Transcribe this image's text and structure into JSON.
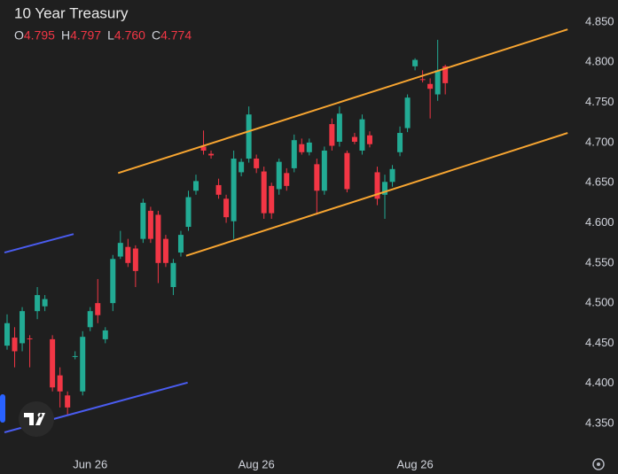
{
  "chart_data": {
    "type": "candlestick",
    "title": "10 Year Treasury",
    "ohlc_header": [
      {
        "key": "O",
        "value": 4.795,
        "label": "4.795"
      },
      {
        "key": "H",
        "value": 4.797,
        "label": "4.797"
      },
      {
        "key": "L",
        "value": 4.76,
        "label": "4.760"
      },
      {
        "key": "C",
        "value": 4.774,
        "label": "4.774"
      }
    ],
    "categories": [
      null,
      null,
      null,
      null,
      null,
      null,
      null,
      null,
      null,
      null,
      null,
      "Jun 26",
      null,
      null,
      null,
      null,
      null,
      null,
      null,
      null,
      null,
      null,
      null,
      null,
      null,
      null,
      null,
      null,
      null,
      null,
      null,
      null,
      null,
      "Aug 26",
      null,
      null,
      null,
      null,
      null,
      null,
      null,
      null,
      null,
      null,
      null,
      null,
      null,
      null,
      null,
      null,
      null,
      null,
      null,
      null,
      "Aug 26",
      null,
      null,
      null,
      null
    ],
    "open": [
      4.447,
      4.457,
      4.45,
      4.456,
      4.49,
      4.496,
      4.455,
      4.41,
      4.385,
      4.433,
      4.39,
      4.47,
      4.5,
      4.455,
      4.5,
      4.558,
      4.57,
      4.568,
      4.58,
      4.615,
      4.61,
      4.58,
      4.52,
      4.563,
      4.595,
      4.64,
      4.695,
      4.686,
      4.647,
      4.63,
      4.602,
      4.663,
      4.68,
      4.68,
      4.664,
      4.646,
      4.642,
      4.662,
      4.668,
      4.698,
      4.688,
      4.673,
      4.64,
      4.723,
      4.701,
      4.687,
      4.707,
      4.69,
      4.709,
      4.663,
      4.635,
      4.651,
      4.688,
      4.718,
      4.795,
      4.779,
      4.773,
      4.76,
      4.795
    ],
    "high": [
      4.486,
      4.47,
      4.495,
      4.46,
      4.52,
      4.51,
      4.46,
      4.42,
      4.39,
      4.44,
      4.465,
      4.495,
      4.53,
      4.47,
      4.56,
      4.59,
      4.58,
      4.572,
      4.63,
      4.62,
      4.615,
      4.585,
      4.555,
      4.59,
      4.64,
      4.66,
      4.715,
      4.69,
      4.655,
      4.635,
      4.69,
      4.68,
      4.745,
      4.685,
      4.67,
      4.65,
      4.68,
      4.668,
      4.71,
      4.705,
      4.705,
      4.68,
      4.695,
      4.73,
      4.745,
      4.69,
      4.712,
      4.735,
      4.714,
      4.67,
      4.66,
      4.672,
      4.72,
      4.76,
      4.805,
      4.79,
      4.78,
      4.828,
      4.797
    ],
    "low": [
      4.442,
      4.42,
      4.44,
      4.42,
      4.48,
      4.49,
      4.39,
      4.37,
      4.36,
      4.43,
      4.385,
      4.465,
      4.475,
      4.45,
      4.49,
      4.555,
      4.545,
      4.52,
      4.575,
      4.575,
      4.525,
      4.545,
      4.51,
      4.558,
      4.59,
      4.635,
      4.685,
      4.68,
      4.63,
      4.6,
      4.58,
      4.658,
      4.675,
      4.662,
      4.605,
      4.605,
      4.635,
      4.64,
      4.663,
      4.685,
      4.684,
      4.61,
      4.635,
      4.69,
      4.695,
      4.638,
      4.698,
      4.685,
      4.694,
      4.622,
      4.605,
      4.645,
      4.683,
      4.713,
      4.79,
      4.775,
      4.73,
      4.752,
      4.76
    ],
    "close": [
      4.475,
      4.44,
      4.49,
      4.455,
      4.51,
      4.505,
      4.395,
      4.39,
      4.37,
      4.434,
      4.458,
      4.49,
      4.485,
      4.466,
      4.555,
      4.575,
      4.55,
      4.54,
      4.625,
      4.58,
      4.55,
      4.55,
      4.55,
      4.585,
      4.632,
      4.652,
      4.69,
      4.684,
      4.635,
      4.607,
      4.68,
      4.676,
      4.735,
      4.668,
      4.612,
      4.612,
      4.676,
      4.646,
      4.703,
      4.688,
      4.7,
      4.64,
      4.69,
      4.696,
      4.736,
      4.642,
      4.701,
      4.729,
      4.698,
      4.63,
      4.651,
      4.667,
      4.712,
      4.756,
      4.803,
      4.778,
      4.767,
      4.79,
      4.774
    ],
    "up_color": "#22ab94",
    "down_color": "#f23645",
    "xlim": [
      -0.94,
      75.35
    ],
    "ylim": [
      4.3147,
      4.8776
    ],
    "yticks": [
      {
        "value": 4.35,
        "label": "4.350"
      },
      {
        "value": 4.4,
        "label": "4.400"
      },
      {
        "value": 4.45,
        "label": "4.450"
      },
      {
        "value": 4.5,
        "label": "4.500"
      },
      {
        "value": 4.55,
        "label": "4.550"
      },
      {
        "value": 4.6,
        "label": "4.600"
      },
      {
        "value": 4.65,
        "label": "4.650"
      },
      {
        "value": 4.7,
        "label": "4.700"
      },
      {
        "value": 4.75,
        "label": "4.750"
      },
      {
        "value": 4.8,
        "label": "4.800"
      },
      {
        "value": 4.85,
        "label": "4.850"
      }
    ],
    "trend_lines": [
      {
        "color": "#f7a531",
        "start": [
          14.7,
          4.662
        ],
        "end": [
          74.2,
          4.841
        ]
      },
      {
        "color": "#f7a531",
        "start": [
          23.7,
          4.559
        ],
        "end": [
          74.2,
          4.712
        ]
      },
      {
        "color": "#4a5cf0",
        "start": [
          -0.35,
          4.563
        ],
        "end": [
          8.8,
          4.586
        ]
      },
      {
        "color": "#4a5cf0",
        "start": [
          -0.35,
          4.339
        ],
        "end": [
          23.9,
          4.401
        ]
      }
    ]
  }
}
